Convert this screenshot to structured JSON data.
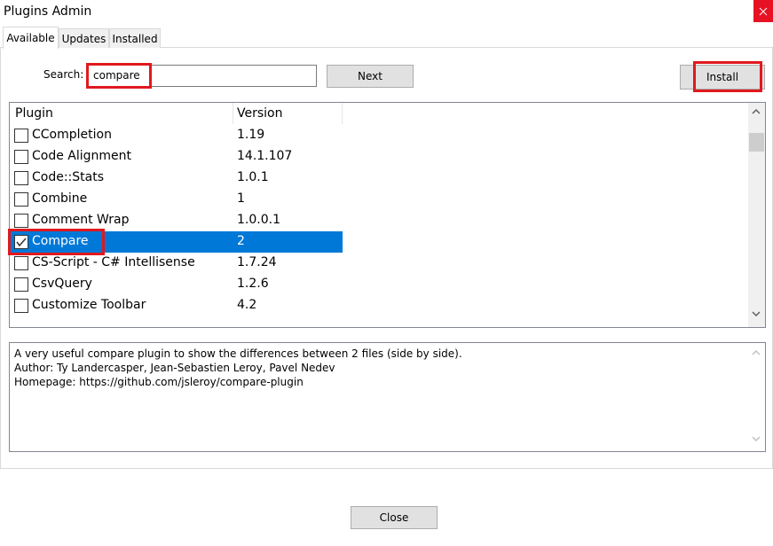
{
  "window": {
    "title": "Plugins Admin"
  },
  "tabs": [
    "Available",
    "Updates",
    "Installed"
  ],
  "search": {
    "label": "Search:",
    "value": "compare"
  },
  "buttons": {
    "next": "Next",
    "install": "Install",
    "close": "Close"
  },
  "list": {
    "columns": [
      "Plugin",
      "Version"
    ],
    "rows": [
      {
        "name": "CCompletion",
        "version": "1.19",
        "checked": false
      },
      {
        "name": "Code Alignment",
        "version": "14.1.107",
        "checked": false
      },
      {
        "name": "Code::Stats",
        "version": "1.0.1",
        "checked": false
      },
      {
        "name": "Combine",
        "version": "1",
        "checked": false
      },
      {
        "name": "Comment Wrap",
        "version": "1.0.0.1",
        "checked": false
      },
      {
        "name": "Compare",
        "version": "2",
        "checked": true
      },
      {
        "name": "CS-Script - C# Intellisense",
        "version": "1.7.24",
        "checked": false
      },
      {
        "name": "CsvQuery",
        "version": "1.2.6",
        "checked": false
      },
      {
        "name": "Customize Toolbar",
        "version": "4.2",
        "checked": false
      }
    ]
  },
  "description": [
    "A very useful compare plugin to show the differences between 2 files (side by side).",
    "Author: Ty Landercasper, Jean-Sebastien Leroy, Pavel Nedev",
    "Homepage: https://github.com/jsleroy/compare-plugin"
  ]
}
